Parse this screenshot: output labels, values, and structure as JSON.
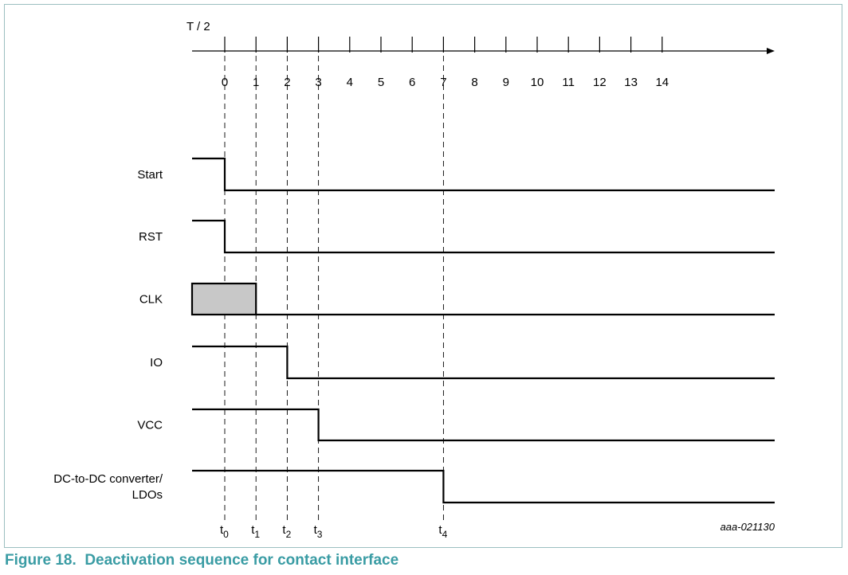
{
  "axis": {
    "label": "T / 2",
    "tick_labels": [
      "0",
      "1",
      "2",
      "3",
      "4",
      "5",
      "6",
      "7",
      "8",
      "9",
      "10",
      "11",
      "12",
      "13",
      "14"
    ]
  },
  "signals": [
    {
      "id": "start",
      "label": "Start",
      "lines": [
        "Start"
      ],
      "transition_tick": 0,
      "kind": "step-down"
    },
    {
      "id": "rst",
      "label": "RST",
      "lines": [
        "RST"
      ],
      "transition_tick": 0,
      "kind": "step-down"
    },
    {
      "id": "clk",
      "label": "CLK",
      "lines": [
        "CLK"
      ],
      "clock_end_tick": 1,
      "kind": "clock"
    },
    {
      "id": "io",
      "label": "IO",
      "lines": [
        "IO"
      ],
      "transition_tick": 2,
      "kind": "step-down"
    },
    {
      "id": "vcc",
      "label": "VCC",
      "lines": [
        "VCC"
      ],
      "transition_tick": 3,
      "kind": "step-down"
    },
    {
      "id": "dcdc",
      "label": "DC-to-DC converter/ LDOs",
      "lines": [
        "DC-to-DC converter/",
        "LDOs"
      ],
      "transition_tick": 7,
      "kind": "step-down"
    }
  ],
  "time_markers": [
    {
      "base": "t",
      "sub": "0",
      "tick": 0
    },
    {
      "base": "t",
      "sub": "1",
      "tick": 1
    },
    {
      "base": "t",
      "sub": "2",
      "tick": 2
    },
    {
      "base": "t",
      "sub": "3",
      "tick": 3
    },
    {
      "base": "t",
      "sub": "4",
      "tick": 7
    }
  ],
  "figure_id": "aaa-021130",
  "caption": {
    "number": "Figure 18.",
    "text": "Deactivation sequence for contact interface",
    "color": "#3a9ca4"
  },
  "colors": {
    "frame": "#9cbfc0",
    "clk_fill": "#c8c8c8"
  }
}
